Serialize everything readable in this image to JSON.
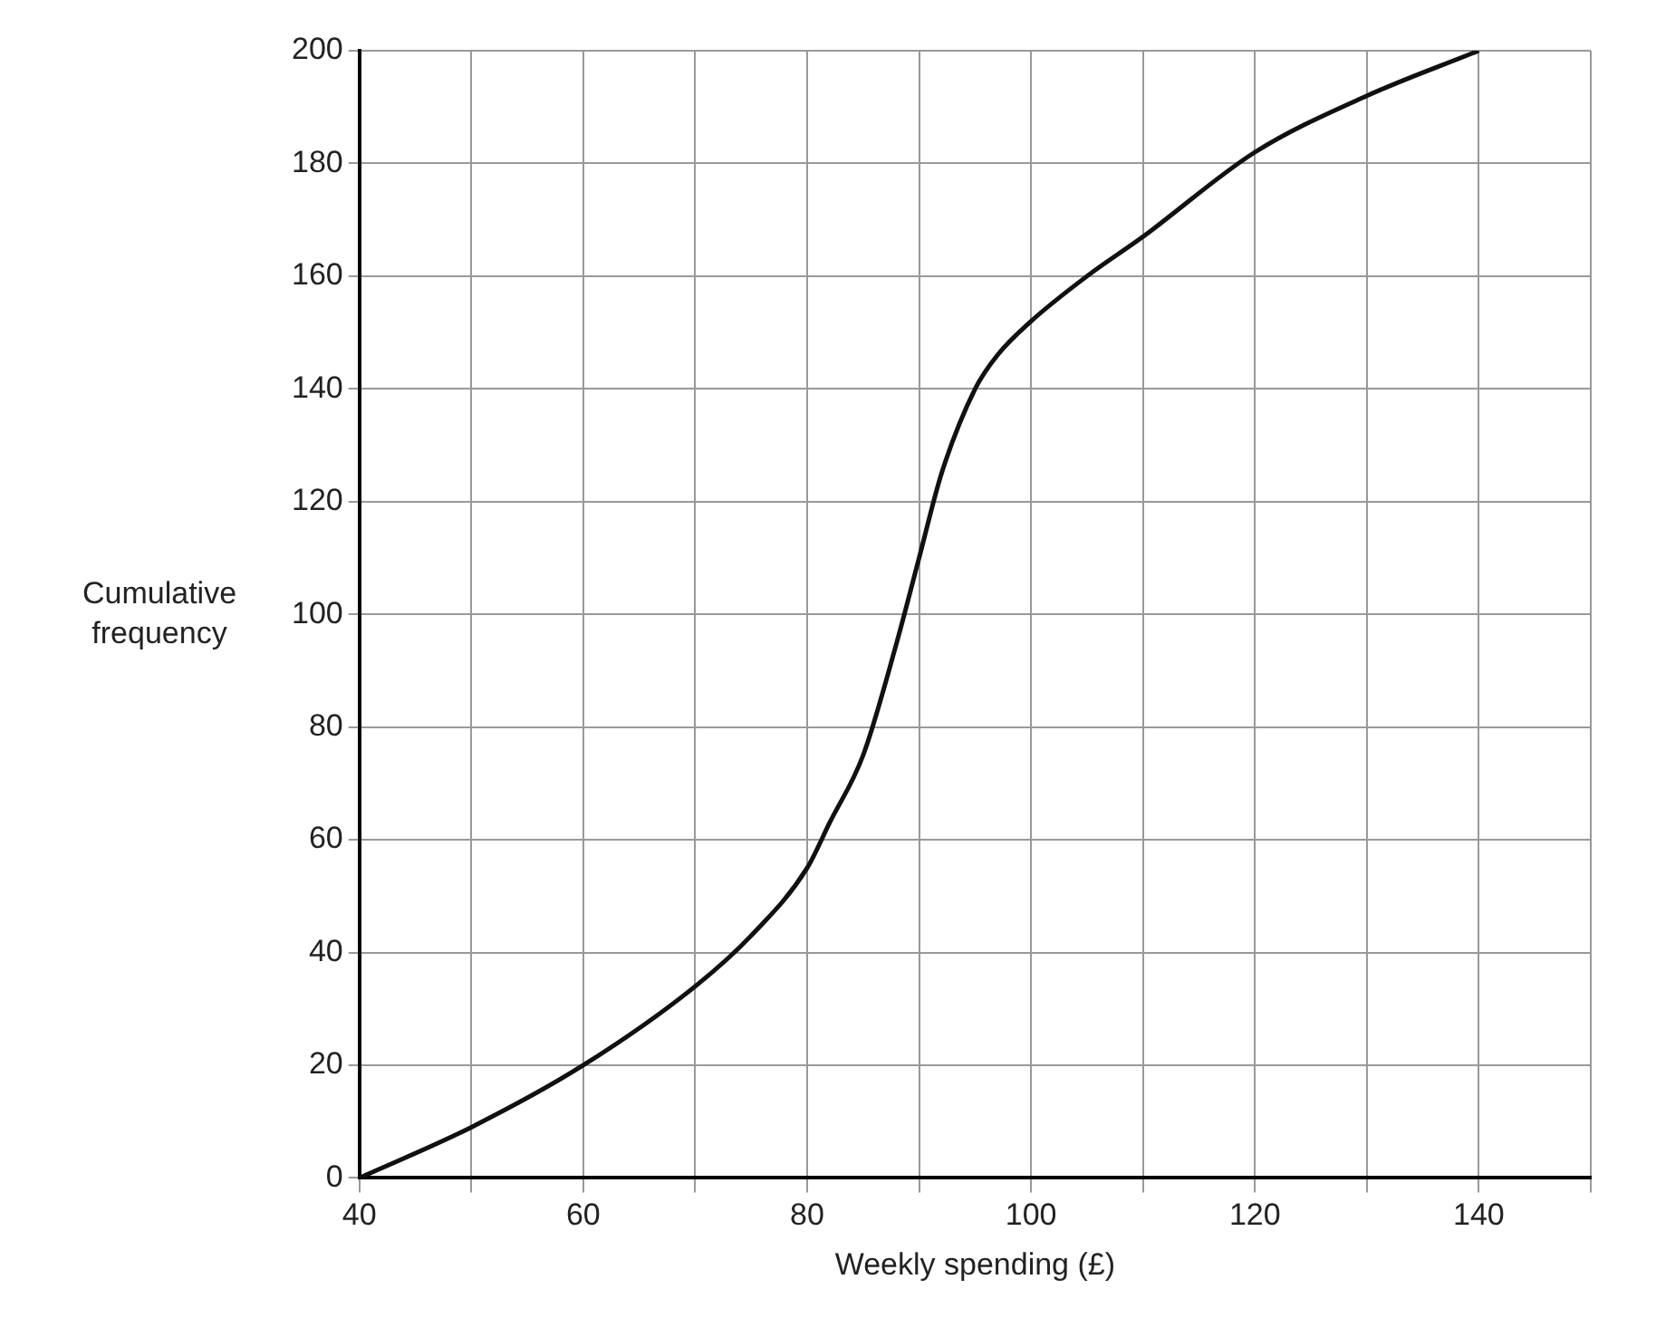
{
  "chart_data": {
    "type": "line",
    "xlabel": "Weekly spending (£)",
    "ylabel": "Cumulative frequency",
    "x": [
      40,
      50,
      60,
      70,
      75,
      80,
      82,
      85,
      88,
      90,
      92,
      95,
      97,
      100,
      105,
      110,
      120,
      130,
      140
    ],
    "series": [
      {
        "color": "#111111",
        "values": [
          0,
          9,
          20,
          34,
          43,
          55,
          63,
          75,
          95,
          110,
          125,
          140,
          146,
          152,
          160,
          167,
          182,
          192,
          200
        ]
      }
    ],
    "xlim": [
      40,
      150
    ],
    "xticks": [
      40,
      {
        "value": 50,
        "label": null
      },
      60,
      {
        "value": 70,
        "label": null
      },
      80,
      {
        "value": 90,
        "label": null
      },
      100,
      {
        "value": 110,
        "label": null
      },
      120,
      {
        "value": 130,
        "label": null
      },
      140,
      {
        "value": 150,
        "label": null
      }
    ],
    "ylim": [
      0,
      200
    ],
    "yticks": [
      0,
      20,
      40,
      60,
      80,
      100,
      120,
      140,
      160,
      180,
      200
    ],
    "grid": true,
    "legend": false,
    "marker": "none",
    "line_style": "solid"
  }
}
